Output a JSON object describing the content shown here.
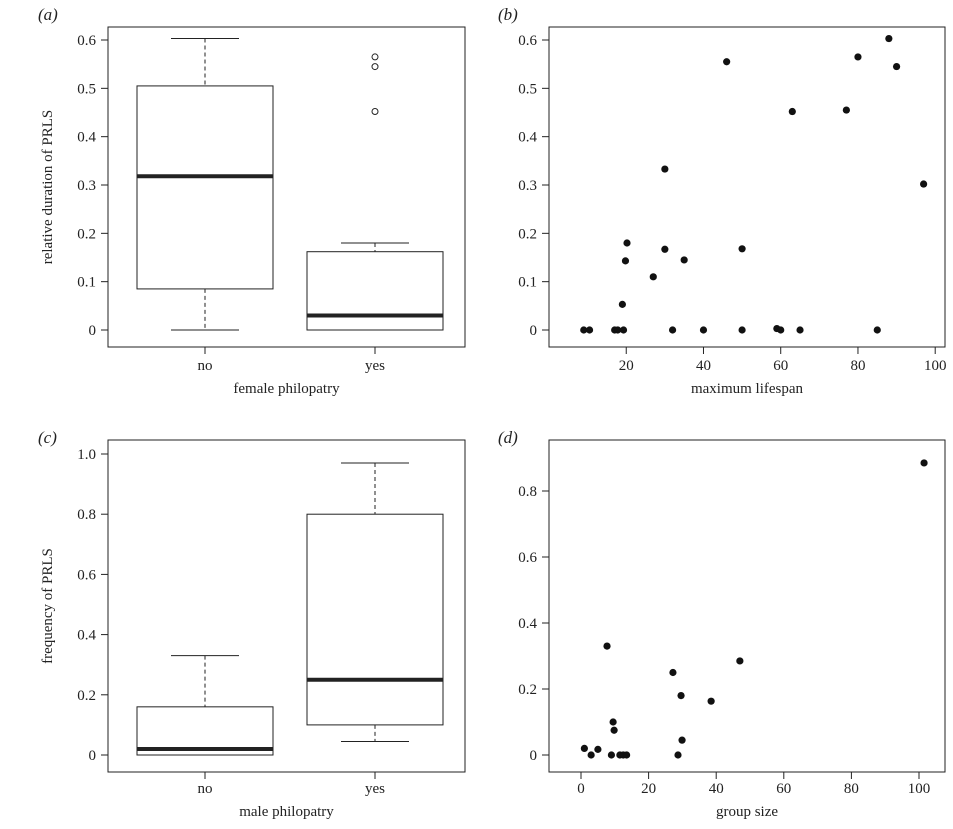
{
  "chart_data": [
    {
      "panel": "(a)",
      "type": "box",
      "xlabel": "female philopatry",
      "ylabel": "relative duration of PRLS",
      "ylim": [
        0,
        0.6
      ],
      "yticks": [
        0,
        0.1,
        0.2,
        0.3,
        0.4,
        0.5,
        0.6
      ],
      "yticklabels": [
        "0",
        "0.1",
        "0.2",
        "0.3",
        "0.4",
        "0.5",
        "0.6"
      ],
      "categories": [
        "no",
        "yes"
      ],
      "boxes": [
        {
          "min": 0,
          "q1": 0.085,
          "median": 0.318,
          "q3": 0.505,
          "max": 0.603,
          "outliers": []
        },
        {
          "min": 0,
          "q1": 0,
          "median": 0.03,
          "q3": 0.162,
          "max": 0.18,
          "outliers": [
            0.565,
            0.545,
            0.452
          ]
        }
      ]
    },
    {
      "panel": "(b)",
      "type": "scatter",
      "xlabel": "maximum lifespan",
      "ylabel": "",
      "xlim": [
        0,
        100
      ],
      "ylim": [
        0,
        0.6
      ],
      "xticks": [
        20,
        40,
        60,
        80,
        100
      ],
      "xticklabels": [
        "20",
        "40",
        "60",
        "80",
        "100"
      ],
      "yticks": [
        0,
        0.1,
        0.2,
        0.3,
        0.4,
        0.5,
        0.6
      ],
      "yticklabels": [
        "0",
        "0.1",
        "0.2",
        "0.3",
        "0.4",
        "0.5",
        "0.6"
      ],
      "x": [
        9,
        10.5,
        17,
        17.8,
        19,
        19.3,
        20.2,
        19.8,
        27,
        30,
        30,
        32,
        35,
        40,
        46,
        50,
        50,
        59,
        60,
        63,
        65,
        77,
        80,
        85,
        88,
        90,
        97
      ],
      "y": [
        0,
        0,
        0,
        0,
        0.053,
        0,
        0.18,
        0.143,
        0.11,
        0.333,
        0.167,
        0,
        0.145,
        0,
        0.555,
        0.168,
        0,
        0.003,
        0,
        0.452,
        0,
        0.455,
        0.565,
        0,
        0.603,
        0.545,
        0.302
      ]
    },
    {
      "panel": "(c)",
      "type": "box",
      "xlabel": "male philopatry",
      "ylabel": "frequency of PRLS",
      "ylim": [
        0,
        1.0
      ],
      "yticks": [
        0,
        0.2,
        0.4,
        0.6,
        0.8,
        1.0
      ],
      "yticklabels": [
        "0",
        "0.2",
        "0.4",
        "0.6",
        "0.8",
        "1.0"
      ],
      "categories": [
        "no",
        "yes"
      ],
      "boxes": [
        {
          "min": 0,
          "q1": 0,
          "median": 0.02,
          "q3": 0.16,
          "max": 0.33,
          "outliers": []
        },
        {
          "min": 0.045,
          "q1": 0.1,
          "median": 0.25,
          "q3": 0.8,
          "max": 0.97,
          "outliers": []
        }
      ]
    },
    {
      "panel": "(d)",
      "type": "scatter",
      "xlabel": "group size",
      "ylabel": "",
      "xlim": [
        0,
        100
      ],
      "ylim": [
        0,
        0.8
      ],
      "xticks": [
        0,
        20,
        40,
        60,
        80,
        100
      ],
      "xticklabels": [
        "0",
        "20",
        "40",
        "60",
        "80",
        "100"
      ],
      "yticks": [
        0,
        0.2,
        0.4,
        0.6,
        0.8
      ],
      "yticklabels": [
        "0",
        "0.2",
        "0.4",
        "0.6",
        "0.8"
      ],
      "x": [
        1,
        3,
        5,
        7.7,
        9,
        9.5,
        9.8,
        11.5,
        12.5,
        13.5,
        27.2,
        28.7,
        29.6,
        29.9,
        38.5,
        47,
        101.5
      ],
      "y": [
        0.02,
        0,
        0.017,
        0.33,
        0,
        0.1,
        0.075,
        0,
        0,
        0,
        0.25,
        0,
        0.18,
        0.045,
        0.163,
        0.285,
        0.885
      ]
    }
  ]
}
